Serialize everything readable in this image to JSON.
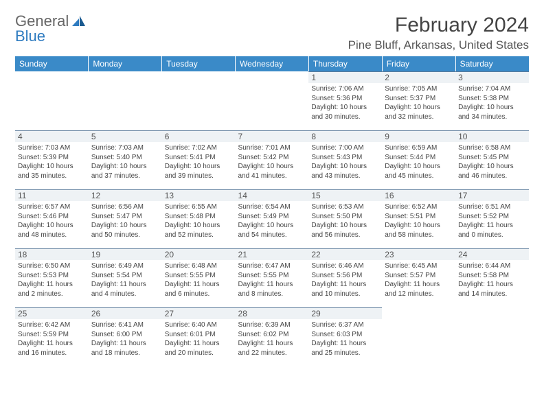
{
  "logo": {
    "general": "General",
    "blue": "Blue"
  },
  "title": "February 2024",
  "location": "Pine Bluff, Arkansas, United States",
  "colors": {
    "header_bg": "#3a8ac8",
    "header_text": "#ffffff",
    "daynum_bg": "#eef2f5",
    "cell_divider": "#5a7a9a"
  },
  "weekdays": [
    "Sunday",
    "Monday",
    "Tuesday",
    "Wednesday",
    "Thursday",
    "Friday",
    "Saturday"
  ],
  "weeks": [
    [
      null,
      null,
      null,
      null,
      {
        "n": "1",
        "sr": "7:06 AM",
        "ss": "5:36 PM",
        "dl": "10 hours and 30 minutes."
      },
      {
        "n": "2",
        "sr": "7:05 AM",
        "ss": "5:37 PM",
        "dl": "10 hours and 32 minutes."
      },
      {
        "n": "3",
        "sr": "7:04 AM",
        "ss": "5:38 PM",
        "dl": "10 hours and 34 minutes."
      }
    ],
    [
      {
        "n": "4",
        "sr": "7:03 AM",
        "ss": "5:39 PM",
        "dl": "10 hours and 35 minutes."
      },
      {
        "n": "5",
        "sr": "7:03 AM",
        "ss": "5:40 PM",
        "dl": "10 hours and 37 minutes."
      },
      {
        "n": "6",
        "sr": "7:02 AM",
        "ss": "5:41 PM",
        "dl": "10 hours and 39 minutes."
      },
      {
        "n": "7",
        "sr": "7:01 AM",
        "ss": "5:42 PM",
        "dl": "10 hours and 41 minutes."
      },
      {
        "n": "8",
        "sr": "7:00 AM",
        "ss": "5:43 PM",
        "dl": "10 hours and 43 minutes."
      },
      {
        "n": "9",
        "sr": "6:59 AM",
        "ss": "5:44 PM",
        "dl": "10 hours and 45 minutes."
      },
      {
        "n": "10",
        "sr": "6:58 AM",
        "ss": "5:45 PM",
        "dl": "10 hours and 46 minutes."
      }
    ],
    [
      {
        "n": "11",
        "sr": "6:57 AM",
        "ss": "5:46 PM",
        "dl": "10 hours and 48 minutes."
      },
      {
        "n": "12",
        "sr": "6:56 AM",
        "ss": "5:47 PM",
        "dl": "10 hours and 50 minutes."
      },
      {
        "n": "13",
        "sr": "6:55 AM",
        "ss": "5:48 PM",
        "dl": "10 hours and 52 minutes."
      },
      {
        "n": "14",
        "sr": "6:54 AM",
        "ss": "5:49 PM",
        "dl": "10 hours and 54 minutes."
      },
      {
        "n": "15",
        "sr": "6:53 AM",
        "ss": "5:50 PM",
        "dl": "10 hours and 56 minutes."
      },
      {
        "n": "16",
        "sr": "6:52 AM",
        "ss": "5:51 PM",
        "dl": "10 hours and 58 minutes."
      },
      {
        "n": "17",
        "sr": "6:51 AM",
        "ss": "5:52 PM",
        "dl": "11 hours and 0 minutes."
      }
    ],
    [
      {
        "n": "18",
        "sr": "6:50 AM",
        "ss": "5:53 PM",
        "dl": "11 hours and 2 minutes."
      },
      {
        "n": "19",
        "sr": "6:49 AM",
        "ss": "5:54 PM",
        "dl": "11 hours and 4 minutes."
      },
      {
        "n": "20",
        "sr": "6:48 AM",
        "ss": "5:55 PM",
        "dl": "11 hours and 6 minutes."
      },
      {
        "n": "21",
        "sr": "6:47 AM",
        "ss": "5:55 PM",
        "dl": "11 hours and 8 minutes."
      },
      {
        "n": "22",
        "sr": "6:46 AM",
        "ss": "5:56 PM",
        "dl": "11 hours and 10 minutes."
      },
      {
        "n": "23",
        "sr": "6:45 AM",
        "ss": "5:57 PM",
        "dl": "11 hours and 12 minutes."
      },
      {
        "n": "24",
        "sr": "6:44 AM",
        "ss": "5:58 PM",
        "dl": "11 hours and 14 minutes."
      }
    ],
    [
      {
        "n": "25",
        "sr": "6:42 AM",
        "ss": "5:59 PM",
        "dl": "11 hours and 16 minutes."
      },
      {
        "n": "26",
        "sr": "6:41 AM",
        "ss": "6:00 PM",
        "dl": "11 hours and 18 minutes."
      },
      {
        "n": "27",
        "sr": "6:40 AM",
        "ss": "6:01 PM",
        "dl": "11 hours and 20 minutes."
      },
      {
        "n": "28",
        "sr": "6:39 AM",
        "ss": "6:02 PM",
        "dl": "11 hours and 22 minutes."
      },
      {
        "n": "29",
        "sr": "6:37 AM",
        "ss": "6:03 PM",
        "dl": "11 hours and 25 minutes."
      },
      null,
      null
    ]
  ],
  "labels": {
    "sunrise": "Sunrise: ",
    "sunset": "Sunset: ",
    "daylight": "Daylight: "
  }
}
